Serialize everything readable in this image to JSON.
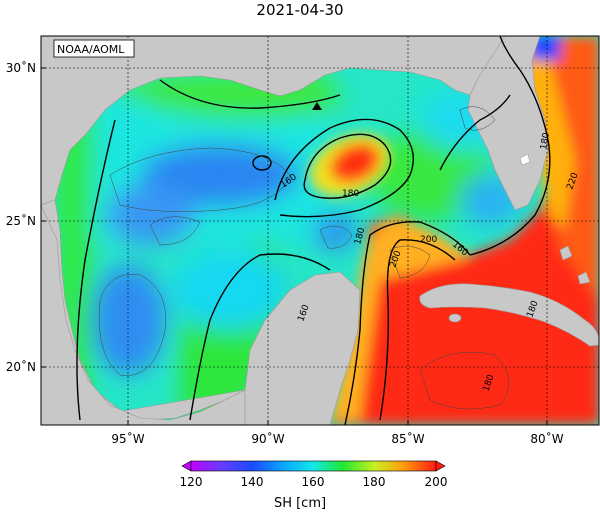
{
  "title": "2021-04-30",
  "source_label": "NOAA/AOML",
  "colors": {
    "land": "#c8c8c8",
    "ocean_low": "#2b8cf0",
    "ocean_mid": "#18e6f0",
    "ocean_green": "#22e830",
    "ocean_high": "#ff2a10",
    "ocean_top": "#ff6600"
  },
  "axes": {
    "x_ticks": [
      "95˚W",
      "90˚W",
      "85˚W",
      "80˚W"
    ],
    "y_ticks": [
      "30˚N",
      "25˚N",
      "20˚N"
    ]
  },
  "contour_labels": [
    "160",
    "180",
    "160",
    "180",
    "200",
    "200",
    "180",
    "220",
    "160",
    "180",
    "180"
  ],
  "colorbar": {
    "ticks": [
      "120",
      "140",
      "160",
      "180",
      "200"
    ],
    "label": "SH [cm]"
  }
}
